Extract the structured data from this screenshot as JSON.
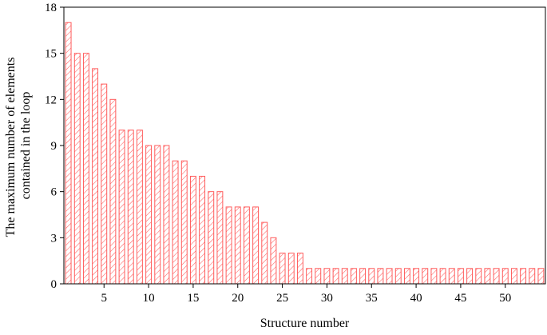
{
  "chart_data": {
    "type": "bar",
    "title": "",
    "xlabel": "Structure number",
    "ylabel_lines": [
      "The maximum number of elements",
      "contained in the loop"
    ],
    "x": [
      1,
      2,
      3,
      4,
      5,
      6,
      7,
      8,
      9,
      10,
      11,
      12,
      13,
      14,
      15,
      16,
      17,
      18,
      19,
      20,
      21,
      22,
      23,
      24,
      25,
      26,
      27,
      28,
      29,
      30,
      31,
      32,
      33,
      34,
      35,
      36,
      37,
      38,
      39,
      40,
      41,
      42,
      43,
      44,
      45,
      46,
      47,
      48,
      49,
      50,
      51,
      52,
      53,
      54
    ],
    "values": [
      17,
      15,
      15,
      14,
      13,
      12,
      10,
      10,
      10,
      9,
      9,
      9,
      8,
      8,
      7,
      7,
      6,
      6,
      5,
      5,
      5,
      5,
      4,
      3,
      2,
      2,
      2,
      1,
      1,
      1,
      1,
      1,
      1,
      1,
      1,
      1,
      1,
      1,
      1,
      1,
      1,
      1,
      1,
      1,
      1,
      1,
      1,
      1,
      1,
      1,
      1,
      1,
      1,
      1
    ],
    "xlim": [
      0.5,
      54.5
    ],
    "ylim": [
      0,
      18
    ],
    "xticks": [
      5,
      10,
      15,
      20,
      25,
      30,
      35,
      40,
      45,
      50
    ],
    "yticks": [
      0,
      3,
      6,
      9,
      12,
      15,
      18
    ],
    "grid": false,
    "legend": "none",
    "bar_color": "#ff5c5c",
    "bar_fill": "diagonal-hatch"
  }
}
